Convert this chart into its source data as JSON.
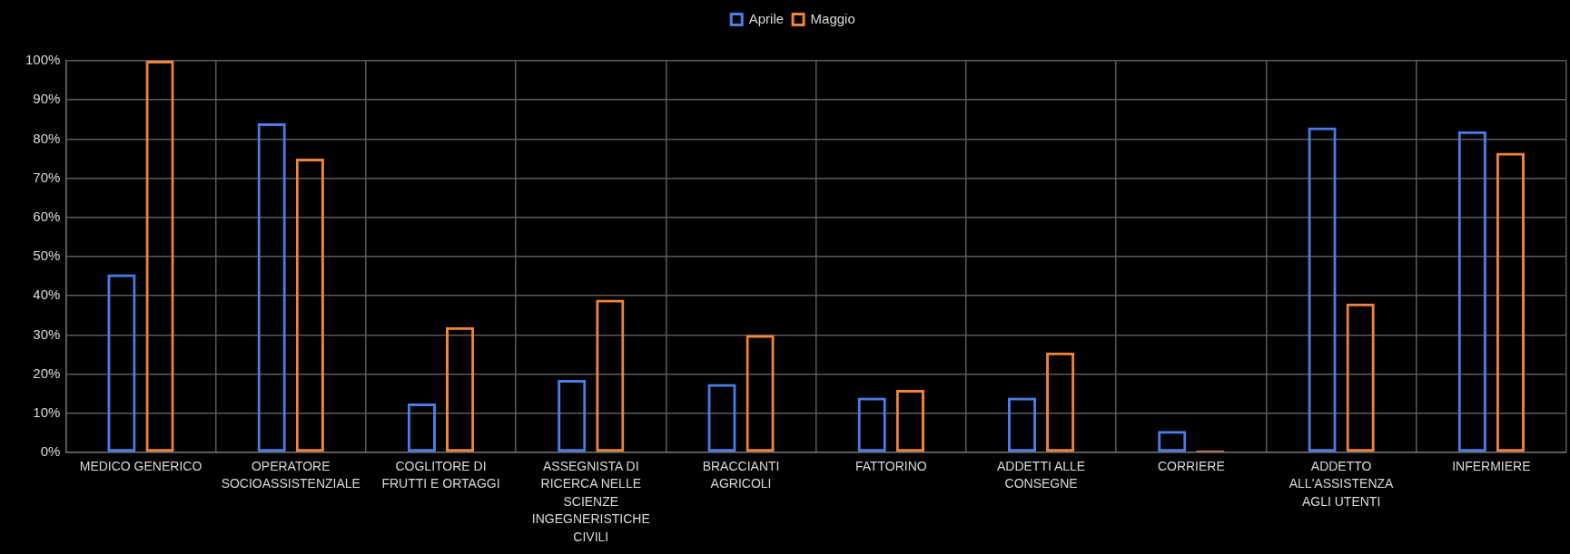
{
  "chart_data": {
    "type": "bar",
    "categories": [
      "MEDICO GENERICO",
      "OPERATORE SOCIOASSISTENZIALE",
      "COGLITORE DI FRUTTI E ORTAGGI",
      "ASSEGNISTA DI RICERCA NELLE SCIENZE INGEGNERISTICHE CIVILI",
      "BRACCIANTI AGRICOLI",
      "FATTORINO",
      "ADDETTI ALLE CONSEGNE",
      "CORRIERE",
      "ADDETTO ALL'ASSISTENZA AGLI UTENTI",
      "INFERMIERE"
    ],
    "series": [
      {
        "name": "Aprile",
        "color": "#4a7de6",
        "values": [
          45.5,
          84,
          12.5,
          18.5,
          17.5,
          14,
          14,
          5.5,
          83,
          82
        ]
      },
      {
        "name": "Maggio",
        "color": "#f0843a",
        "values": [
          100,
          75,
          32,
          39,
          30,
          16,
          25.5,
          0.5,
          38,
          76.5
        ]
      }
    ],
    "ylim": [
      0,
      100
    ],
    "yticks": [
      {
        "value": 0,
        "label": "0%"
      },
      {
        "value": 10,
        "label": "10%"
      },
      {
        "value": 20,
        "label": "20%"
      },
      {
        "value": 30,
        "label": "30%"
      },
      {
        "value": 40,
        "label": "40%"
      },
      {
        "value": 50,
        "label": "50%"
      },
      {
        "value": 60,
        "label": "60%"
      },
      {
        "value": 70,
        "label": "70%"
      },
      {
        "value": 80,
        "label": "80%"
      },
      {
        "value": 90,
        "label": "90%"
      },
      {
        "value": 100,
        "label": "100%"
      }
    ],
    "grid": true,
    "legend": "top"
  }
}
